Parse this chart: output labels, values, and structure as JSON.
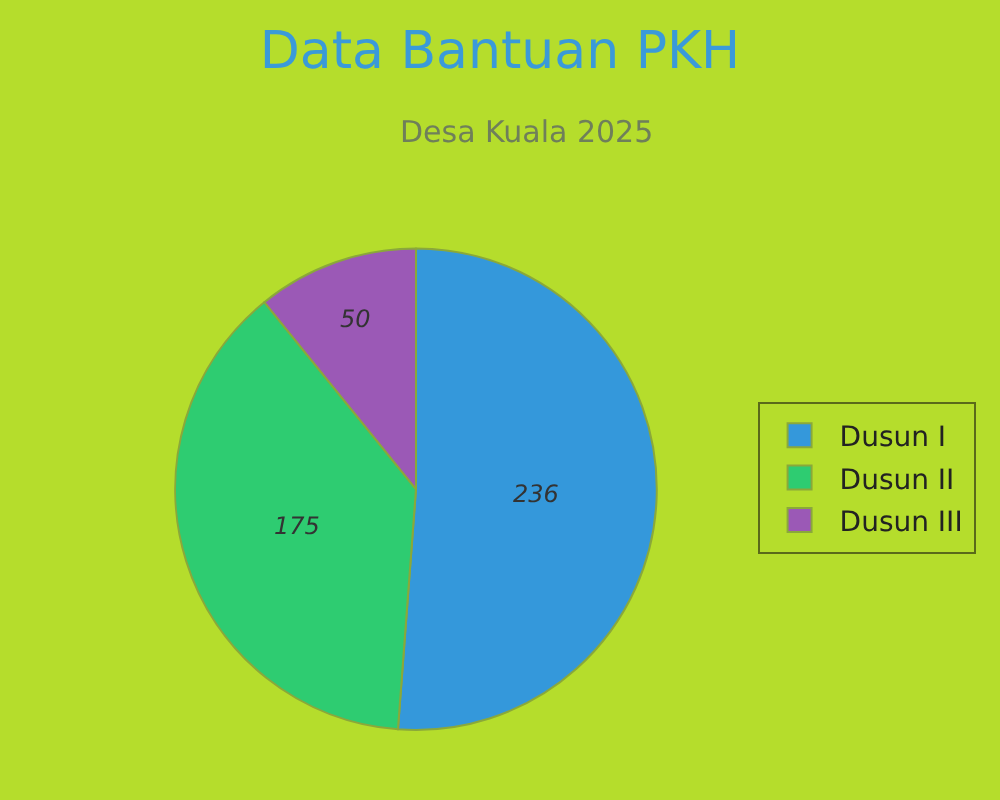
{
  "chart_data": {
    "type": "pie",
    "title": "Data Bantuan PKH",
    "subtitle": "Desa Kuala 2025",
    "categories": [
      "Dusun I",
      "Dusun II",
      "Dusun III"
    ],
    "values": [
      236,
      175,
      50
    ],
    "colors": [
      "#3498db",
      "#2ecc71",
      "#9b59b6"
    ],
    "data_labels": true,
    "legend": "right"
  }
}
